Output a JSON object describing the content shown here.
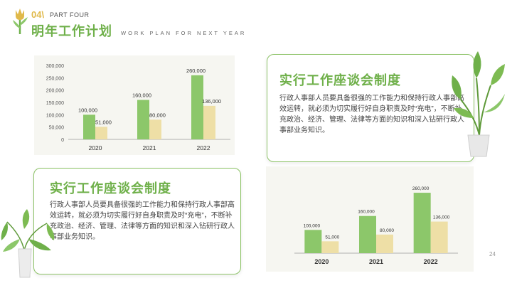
{
  "header": {
    "number": "04\\",
    "part": "PART FOUR",
    "title": "明年工作计划",
    "subtitle": "WORK PLAN FOR NEXT YEAR"
  },
  "card1": {
    "title": "实行工作座谈会制度",
    "body": "行政人事部人员要具备很强的工作能力和保持行政人事部高效运转，就必须为切实履行好自身职责及时“充电”，不断补充政治、经济、管理、法律等方面的知识和深入钻研行政人事部业务知识。"
  },
  "card2": {
    "title": "实行工作座谈会制度",
    "body": "行政人事部人员要具备很强的工作能力和保持行政人事部高效运转，就必须为切实履行好自身职责及时“充电”，不断补充政治、经济、管理、法律等方面的知识和深入钻研行政人事部业务知识。"
  },
  "page_number": "24",
  "colors": {
    "green": "#8cc76a",
    "cream": "#eedfa6",
    "accent": "#6fb04a",
    "gold": "#e0b94a"
  },
  "chart_data": [
    {
      "type": "bar",
      "categories": [
        "2020",
        "2021",
        "2022"
      ],
      "series": [
        {
          "values": [
            100000,
            160000,
            260000
          ],
          "value_labels": [
            "100,000",
            "160,000",
            "260,000"
          ],
          "color": "#8cc76a"
        },
        {
          "values": [
            51000,
            80000,
            136000
          ],
          "value_labels": [
            "51,000",
            "80,000",
            "136,000"
          ],
          "color": "#eedfa6"
        }
      ],
      "ylim": [
        0,
        300000
      ],
      "yticks": [
        0,
        50000,
        100000,
        150000,
        200000,
        250000,
        300000
      ],
      "ytick_labels": [
        "0",
        "50,000",
        "100,000",
        "150,000",
        "200,000",
        "250,000",
        "300,000"
      ],
      "xlabel": "",
      "ylabel": "",
      "title": ""
    },
    {
      "type": "bar",
      "categories": [
        "2020",
        "2021",
        "2022"
      ],
      "series": [
        {
          "values": [
            100000,
            160000,
            260000
          ],
          "value_labels": [
            "100,000",
            "160,000",
            "260,000"
          ],
          "color": "#8cc76a"
        },
        {
          "values": [
            51000,
            80000,
            136000
          ],
          "value_labels": [
            "51,000",
            "80,000",
            "136,000"
          ],
          "color": "#eedfa6"
        }
      ],
      "ylim": [
        0,
        300000
      ],
      "xlabel": "",
      "ylabel": "",
      "title": ""
    }
  ]
}
